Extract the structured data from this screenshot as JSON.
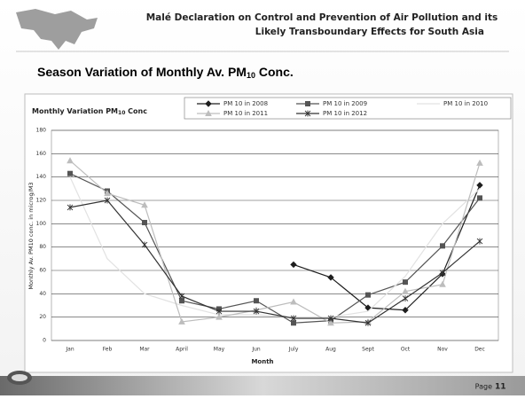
{
  "header": {
    "line1": "Malé Declaration on Control and Prevention of Air Pollution and its",
    "line2": "Likely Transboundary Effects for South Asia"
  },
  "slide_title": {
    "main": "Season Variation of Monthly Av. PM",
    "sub": "10",
    "end": " Conc."
  },
  "chart_data": {
    "type": "line",
    "title": {
      "main": "Monthly Variation PM",
      "sub": "10",
      "end": " Conc"
    },
    "x_label": "Month",
    "y_label": "Monthly Av. PM10 conc. in microg/M3",
    "categories": [
      "Jan",
      "Feb",
      "Mar",
      "April",
      "May",
      "Jun",
      "July",
      "Aug",
      "Sept",
      "Oct",
      "Nov",
      "Dec"
    ],
    "series": [
      {
        "name": "PM 10 in 2008",
        "color": "#1e1e1e",
        "marker": "diamond",
        "values": [
          null,
          null,
          null,
          null,
          null,
          null,
          65,
          54,
          28,
          26,
          57,
          133
        ]
      },
      {
        "name": "PM 10 in 2009",
        "color": "#555555",
        "marker": "square",
        "values": [
          143,
          128,
          101,
          34,
          27,
          34,
          15,
          17,
          39,
          50,
          81,
          122
        ]
      },
      {
        "name": "PM 10 in 2010",
        "color": "#e2e2e2",
        "marker": "none",
        "values": [
          140,
          70,
          40,
          30,
          22,
          22,
          20,
          20,
          25,
          55,
          100,
          130
        ]
      },
      {
        "name": "PM 10 in 2011",
        "color": "#bdbdbd",
        "marker": "triangle",
        "values": [
          154,
          126,
          116,
          16,
          20,
          26,
          33,
          15,
          16,
          42,
          48,
          152
        ]
      },
      {
        "name": "PM 10 in 2012",
        "color": "#333333",
        "marker": "star",
        "values": [
          114,
          120,
          82,
          38,
          25,
          25,
          19,
          19,
          15,
          36,
          58,
          85
        ]
      }
    ],
    "ylim": [
      0,
      180
    ],
    "yticks": [
      0,
      20,
      40,
      60,
      80,
      100,
      120,
      140,
      160,
      180
    ],
    "grid": true
  },
  "footer": {
    "page_label": "Page",
    "page_number": "11"
  }
}
